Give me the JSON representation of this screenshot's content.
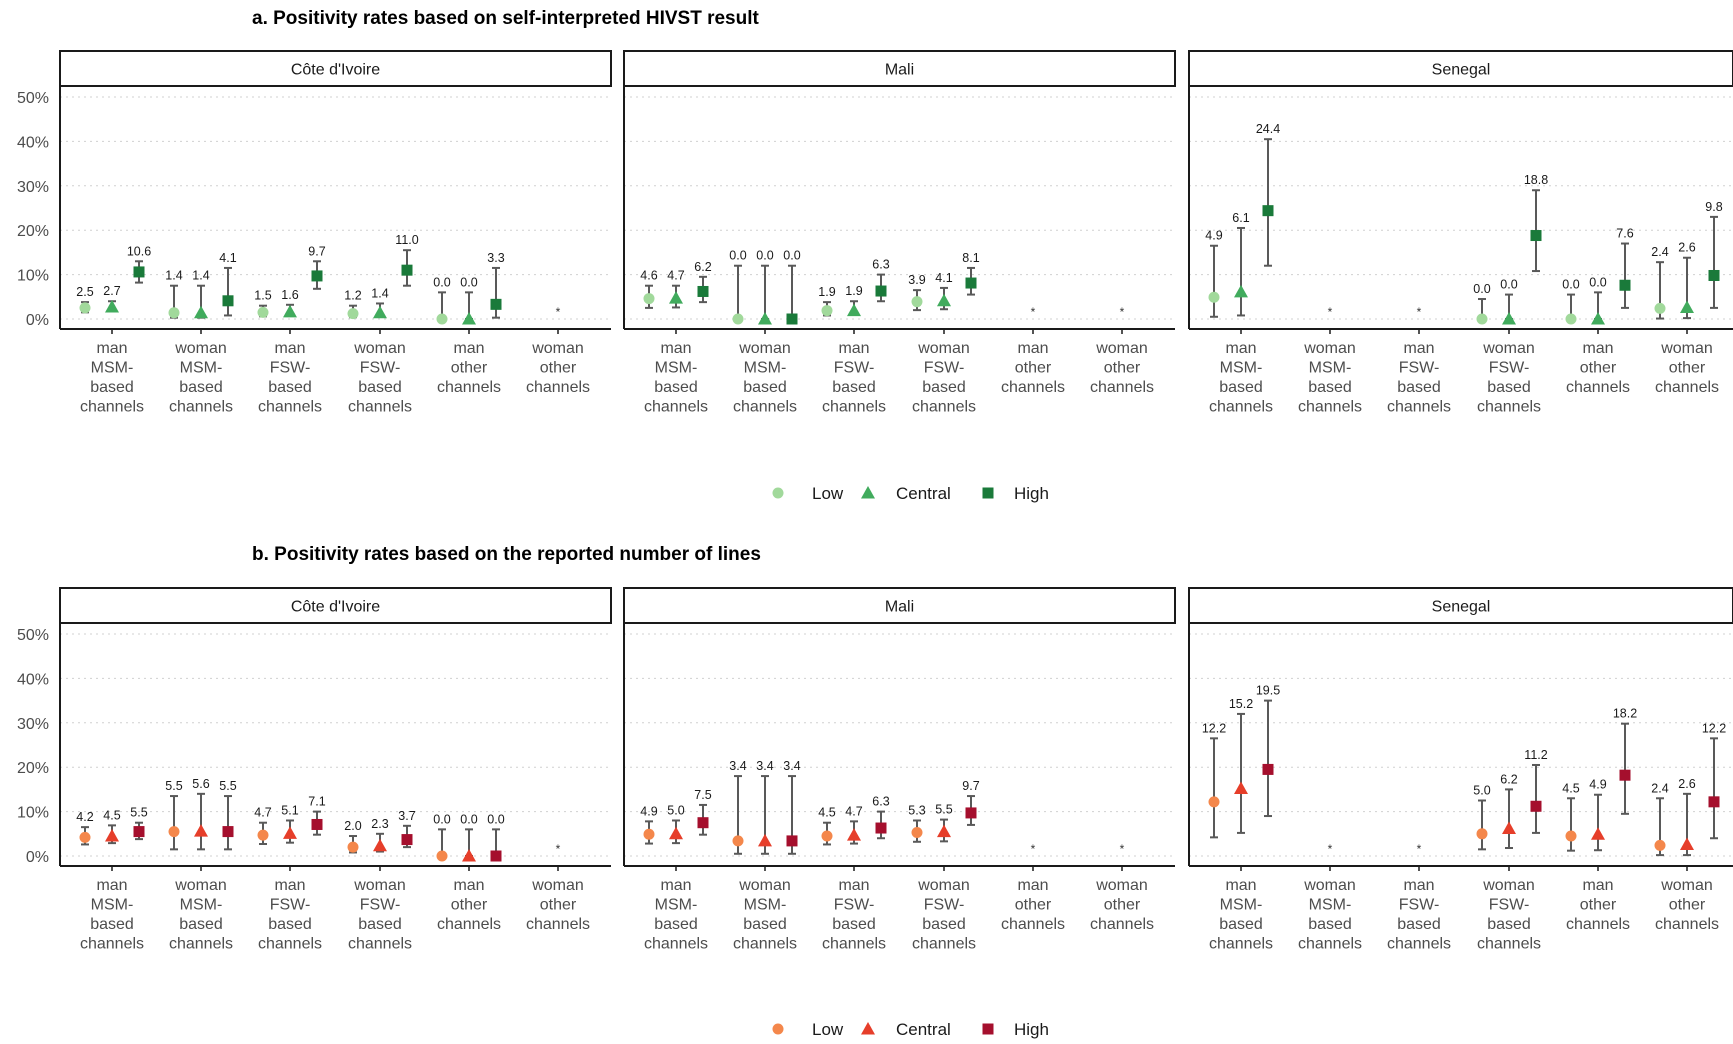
{
  "chart_data": [
    {
      "type": "scatter",
      "title": "a. Positivity rates based on self-interpreted HIVST result",
      "facets": [
        "Côte d'Ivoire",
        "Mali",
        "Senegal"
      ],
      "categories": [
        [
          "man",
          "MSM-",
          "based",
          "channels"
        ],
        [
          "woman",
          "MSM-",
          "based",
          "channels"
        ],
        [
          "man",
          "FSW-",
          "based",
          "channels"
        ],
        [
          "woman",
          "FSW-",
          "based",
          "channels"
        ],
        [
          "man",
          "other",
          "channels"
        ],
        [
          "woman",
          "other",
          "channels"
        ]
      ],
      "y_ticks": [
        "0%",
        "10%",
        "20%",
        "30%",
        "40%",
        "50%"
      ],
      "ylim": [
        0,
        50
      ],
      "grid": true,
      "legend": {
        "position": "bottom",
        "entries": [
          "Low",
          "Central",
          "High"
        ]
      },
      "colors": {
        "Low": "#a1d99b",
        "Central": "#41ab5d",
        "High": "#1a7a3a"
      },
      "shapes": {
        "Low": "circle",
        "Central": "triangle",
        "High": "square"
      },
      "series": [
        {
          "name": "Low",
          "label": [
            [
              "2.5",
              "1.4",
              "1.5",
              "1.2",
              "0.0",
              null
            ],
            [
              "4.6",
              "0.0",
              "1.9",
              "3.9",
              null,
              null
            ],
            [
              "4.9",
              null,
              null,
              "0.0",
              "0.0",
              "2.4"
            ]
          ],
          "y": [
            [
              2.5,
              1.4,
              1.5,
              1.2,
              0.0,
              null
            ],
            [
              4.6,
              0.0,
              1.9,
              3.9,
              null,
              null
            ],
            [
              4.9,
              null,
              null,
              0.0,
              0.0,
              2.4
            ]
          ],
          "lo": [
            [
              1.5,
              0.3,
              0.6,
              0.4,
              0,
              null
            ],
            [
              2.5,
              0,
              0.8,
              2.0,
              null,
              null
            ],
            [
              0.5,
              null,
              null,
              0,
              0,
              0.1
            ]
          ],
          "hi": [
            [
              3.8,
              7.5,
              3.0,
              3.0,
              6.0,
              null
            ],
            [
              7.5,
              12.0,
              3.8,
              6.5,
              null,
              null
            ],
            [
              16.5,
              null,
              null,
              4.5,
              5.5,
              12.8
            ]
          ]
        },
        {
          "name": "Central",
          "label": [
            [
              "2.7",
              "1.4",
              "1.6",
              "1.4",
              "0.0",
              null
            ],
            [
              "4.7",
              "0.0",
              "1.9",
              "4.1",
              null,
              null
            ],
            [
              "6.1",
              null,
              null,
              "0.0",
              "0.0",
              "2.6"
            ]
          ],
          "y": [
            [
              2.7,
              1.4,
              1.6,
              1.4,
              0.0,
              null
            ],
            [
              4.7,
              0.0,
              1.9,
              4.1,
              null,
              null
            ],
            [
              6.1,
              null,
              null,
              0.0,
              0.0,
              2.6
            ]
          ],
          "lo": [
            [
              1.7,
              0.3,
              0.7,
              0.5,
              0,
              null
            ],
            [
              2.6,
              0,
              0.9,
              2.2,
              null,
              null
            ],
            [
              0.8,
              null,
              null,
              0,
              0,
              0.2
            ]
          ],
          "hi": [
            [
              4.0,
              7.5,
              3.2,
              3.5,
              6.0,
              null
            ],
            [
              7.5,
              12.0,
              4.0,
              7.0,
              null,
              null
            ],
            [
              20.5,
              null,
              null,
              5.5,
              6.0,
              13.8
            ]
          ]
        },
        {
          "name": "High",
          "label": [
            [
              "10.6",
              "4.1",
              "9.7",
              "11.0",
              "3.3",
              null
            ],
            [
              "6.2",
              "0.0",
              "6.3",
              "8.1",
              null,
              null
            ],
            [
              "24.4",
              null,
              null,
              "18.8",
              "7.6",
              "9.8"
            ]
          ],
          "y": [
            [
              10.6,
              4.1,
              9.7,
              11.0,
              3.3,
              null
            ],
            [
              6.2,
              0.0,
              6.3,
              8.1,
              null,
              null
            ],
            [
              24.4,
              null,
              null,
              18.8,
              7.6,
              9.8
            ]
          ],
          "lo": [
            [
              8.2,
              0.8,
              6.8,
              7.5,
              0.3,
              null
            ],
            [
              3.8,
              0,
              4.0,
              5.5,
              null,
              null
            ],
            [
              12.0,
              null,
              null,
              10.8,
              2.5,
              2.5
            ]
          ],
          "hi": [
            [
              13.0,
              11.5,
              13.0,
              15.5,
              11.5,
              null
            ],
            [
              9.5,
              12.0,
              10.0,
              11.5,
              null,
              null
            ],
            [
              40.5,
              null,
              null,
              29.0,
              17.0,
              23.0
            ]
          ]
        }
      ],
      "missing_marker": "*",
      "missing": [
        [
          5
        ],
        [
          4,
          5
        ],
        [
          1,
          2
        ]
      ]
    },
    {
      "type": "scatter",
      "title": "b. Positivity rates based on the reported number of lines",
      "facets": [
        "Côte d'Ivoire",
        "Mali",
        "Senegal"
      ],
      "categories": [
        [
          "man",
          "MSM-",
          "based",
          "channels"
        ],
        [
          "woman",
          "MSM-",
          "based",
          "channels"
        ],
        [
          "man",
          "FSW-",
          "based",
          "channels"
        ],
        [
          "woman",
          "FSW-",
          "based",
          "channels"
        ],
        [
          "man",
          "other",
          "channels"
        ],
        [
          "woman",
          "other",
          "channels"
        ]
      ],
      "y_ticks": [
        "0%",
        "10%",
        "20%",
        "30%",
        "40%",
        "50%"
      ],
      "ylim": [
        0,
        50
      ],
      "grid": true,
      "legend": {
        "position": "bottom",
        "entries": [
          "Low",
          "Central",
          "High"
        ]
      },
      "colors": {
        "Low": "#f4874b",
        "Central": "#e63e2a",
        "High": "#a50f2d"
      },
      "shapes": {
        "Low": "circle",
        "Central": "triangle",
        "High": "square"
      },
      "series": [
        {
          "name": "Low",
          "label": [
            [
              "4.2",
              "5.5",
              "4.7",
              "2.0",
              "0.0",
              null
            ],
            [
              "4.9",
              "3.4",
              "4.5",
              "5.3",
              null,
              null
            ],
            [
              "12.2",
              null,
              null,
              "5.0",
              "4.5",
              "2.4"
            ]
          ],
          "y": [
            [
              4.2,
              5.5,
              4.7,
              2.0,
              0.0,
              null
            ],
            [
              4.9,
              3.4,
              4.5,
              5.3,
              null,
              null
            ],
            [
              12.2,
              null,
              null,
              5.0,
              4.5,
              2.4
            ]
          ],
          "lo": [
            [
              2.6,
              1.5,
              2.7,
              0.8,
              0,
              null
            ],
            [
              2.8,
              0.5,
              2.6,
              3.2,
              null,
              null
            ],
            [
              4.2,
              null,
              null,
              1.5,
              1.2,
              0.2
            ]
          ],
          "hi": [
            [
              6.5,
              13.5,
              7.5,
              4.5,
              6.0,
              null
            ],
            [
              7.8,
              18.0,
              7.5,
              8.0,
              null,
              null
            ],
            [
              26.5,
              null,
              null,
              12.5,
              13.0,
              13.0
            ]
          ]
        },
        {
          "name": "Central",
          "label": [
            [
              "4.5",
              "5.6",
              "5.1",
              "2.3",
              "0.0",
              null
            ],
            [
              "5.0",
              "3.4",
              "4.7",
              "5.5",
              null,
              null
            ],
            [
              "15.2",
              null,
              null,
              "6.2",
              "4.9",
              "2.6"
            ]
          ],
          "y": [
            [
              4.5,
              5.6,
              5.1,
              2.3,
              0.0,
              null
            ],
            [
              5.0,
              3.4,
              4.7,
              5.5,
              null,
              null
            ],
            [
              15.2,
              null,
              null,
              6.2,
              4.9,
              2.6
            ]
          ],
          "lo": [
            [
              2.9,
              1.5,
              3.0,
              1.0,
              0,
              null
            ],
            [
              2.9,
              0.5,
              2.8,
              3.3,
              null,
              null
            ],
            [
              5.2,
              null,
              null,
              1.8,
              1.3,
              0.2
            ]
          ],
          "hi": [
            [
              6.9,
              14.0,
              8.0,
              5.0,
              6.0,
              null
            ],
            [
              8.0,
              18.0,
              7.8,
              8.2,
              null,
              null
            ],
            [
              32.0,
              null,
              null,
              15.0,
              13.8,
              14.0
            ]
          ]
        },
        {
          "name": "High",
          "label": [
            [
              "5.5",
              "5.5",
              "7.1",
              "3.7",
              "0.0",
              null
            ],
            [
              "7.5",
              "3.4",
              "6.3",
              "9.7",
              null,
              null
            ],
            [
              "19.5",
              null,
              null,
              "11.2",
              "18.2",
              "12.2"
            ]
          ],
          "y": [
            [
              5.5,
              5.5,
              7.1,
              3.7,
              0.0,
              null
            ],
            [
              7.5,
              3.4,
              6.3,
              9.7,
              null,
              null
            ],
            [
              19.5,
              null,
              null,
              11.2,
              18.2,
              12.2
            ]
          ],
          "lo": [
            [
              3.8,
              1.5,
              4.8,
              2.0,
              0,
              null
            ],
            [
              4.8,
              0.5,
              4.0,
              7.0,
              null,
              null
            ],
            [
              9.0,
              null,
              null,
              5.2,
              9.5,
              4.0
            ]
          ],
          "hi": [
            [
              7.5,
              13.5,
              10.0,
              6.8,
              6.0,
              null
            ],
            [
              11.5,
              18.0,
              10.0,
              13.5,
              null,
              null
            ],
            [
              35.0,
              null,
              null,
              20.5,
              29.8,
              26.5
            ]
          ]
        }
      ],
      "missing_marker": "*",
      "missing": [
        [
          5
        ],
        [
          4,
          5
        ],
        [
          1,
          2
        ]
      ]
    }
  ]
}
